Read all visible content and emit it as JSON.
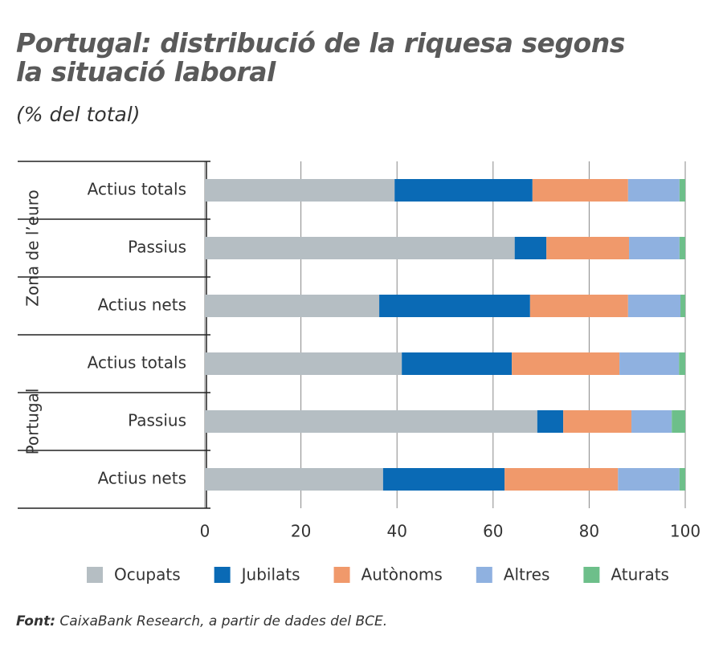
{
  "chart_data": {
    "type": "stacked-barh",
    "title": "Portugal: distribució de la riquesa segons la situació laboral",
    "subtitle": "(% del total)",
    "groups": [
      "Zona de l’euro",
      "Portugal"
    ],
    "categories": [
      "Actius totals",
      "Passius",
      "Actius nets",
      "Actius totals",
      "Passius",
      "Actius nets"
    ],
    "series": [
      {
        "name": "Ocupats",
        "color": "#b5bec3",
        "values": [
          39.5,
          64.5,
          36.3,
          41.0,
          69.2,
          37.1
        ]
      },
      {
        "name": "Jubilats",
        "color": "#0a6ab5",
        "values": [
          28.7,
          6.6,
          31.4,
          22.9,
          5.4,
          25.3
        ]
      },
      {
        "name": "Autònoms",
        "color": "#f0996b",
        "values": [
          19.9,
          17.2,
          20.4,
          22.4,
          14.2,
          23.6
        ]
      },
      {
        "name": "Altres",
        "color": "#8fb1e0",
        "values": [
          10.7,
          10.5,
          10.9,
          12.4,
          8.4,
          12.8
        ]
      },
      {
        "name": "Aturats",
        "color": "#6dbf8a",
        "values": [
          1.2,
          1.2,
          1.0,
          1.3,
          2.8,
          1.2
        ]
      }
    ],
    "xlim": [
      0,
      100
    ],
    "xticks": [
      0,
      20,
      40,
      60,
      80,
      100
    ],
    "grid": true,
    "source_label": "Font:",
    "source": "CaixaBank Research, a partir de dades del BCE."
  }
}
